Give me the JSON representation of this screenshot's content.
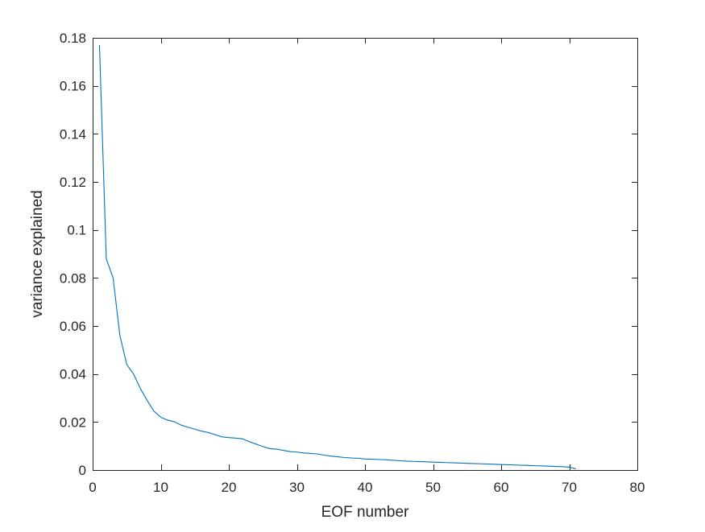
{
  "chart_data": {
    "type": "line",
    "xlabel": "EOF number",
    "ylabel": "variance explained",
    "xlim": [
      0,
      80
    ],
    "ylim": [
      0,
      0.18
    ],
    "xticks": [
      0,
      10,
      20,
      30,
      40,
      50,
      60,
      70,
      80
    ],
    "xtick_labels": [
      "0",
      "10",
      "20",
      "30",
      "40",
      "50",
      "60",
      "70",
      "80"
    ],
    "yticks": [
      0,
      0.02,
      0.04,
      0.06,
      0.08,
      0.1,
      0.12,
      0.14,
      0.16,
      0.18
    ],
    "ytick_labels": [
      "0",
      "0.02",
      "0.04",
      "0.06",
      "0.08",
      "0.1",
      "0.12",
      "0.14",
      "0.16",
      "0.18"
    ],
    "grid": false,
    "box": true,
    "series": [
      {
        "color": "#0072BD",
        "x": [
          1,
          2,
          3,
          4,
          5,
          6,
          7,
          8,
          9,
          10,
          11,
          12,
          13,
          14,
          15,
          16,
          17,
          18,
          19,
          20,
          21,
          22,
          23,
          24,
          25,
          26,
          27,
          28,
          29,
          30,
          31,
          32,
          33,
          34,
          35,
          36,
          37,
          38,
          39,
          40,
          41,
          42,
          43,
          44,
          45,
          46,
          47,
          48,
          49,
          50,
          51,
          52,
          53,
          54,
          55,
          56,
          57,
          58,
          59,
          60,
          61,
          62,
          63,
          64,
          65,
          66,
          67,
          68,
          69,
          70,
          71
        ],
        "y": [
          0.177,
          0.088,
          0.08,
          0.056,
          0.044,
          0.04,
          0.034,
          0.029,
          0.0245,
          0.022,
          0.0208,
          0.0201,
          0.0187,
          0.0178,
          0.017,
          0.0162,
          0.0156,
          0.0147,
          0.0138,
          0.0135,
          0.0133,
          0.013,
          0.0118,
          0.0108,
          0.0098,
          0.0089,
          0.0087,
          0.0082,
          0.0077,
          0.0075,
          0.0071,
          0.0069,
          0.0067,
          0.0062,
          0.0058,
          0.0055,
          0.0052,
          0.005,
          0.0049,
          0.0046,
          0.0045,
          0.0044,
          0.0043,
          0.0041,
          0.0039,
          0.0037,
          0.0036,
          0.0035,
          0.0034,
          0.0033,
          0.0032,
          0.0031,
          0.003,
          0.0029,
          0.0028,
          0.0027,
          0.0026,
          0.0025,
          0.0024,
          0.0023,
          0.0022,
          0.0021,
          0.002,
          0.0019,
          0.0018,
          0.0017,
          0.0016,
          0.0015,
          0.0014,
          0.0012,
          0.0005
        ]
      }
    ]
  }
}
